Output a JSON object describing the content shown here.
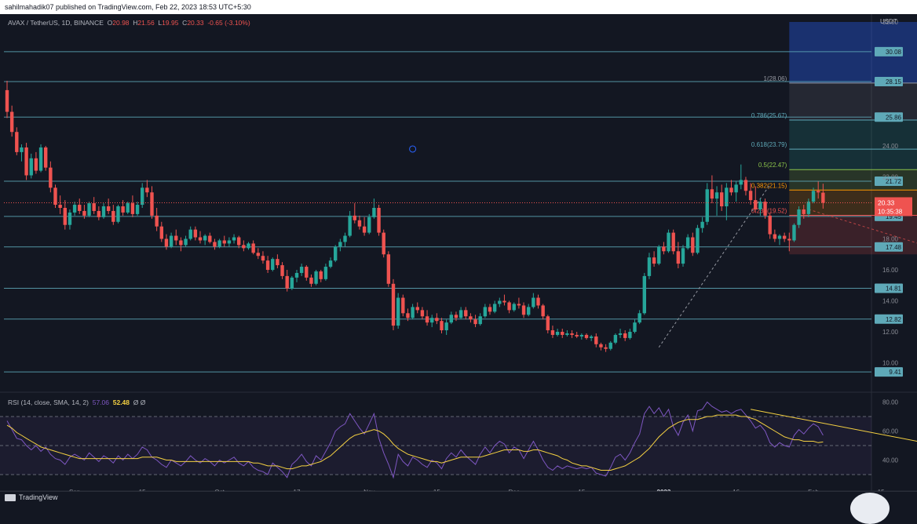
{
  "header": {
    "publish_line": "sahilmahadik07 published on TradingView.com, Feb 22, 2023 18:53 UTC+5:30"
  },
  "legend": {
    "symbol": "AVAX / TetherUS, 1D, BINANCE",
    "o_label": "O",
    "o_value": "20.98",
    "h_label": "H",
    "h_value": "21.56",
    "l_label": "L",
    "l_value": "19.95",
    "c_label": "C",
    "c_value": "20.33",
    "change": "-0.65 (-3.10%)"
  },
  "rsi_legend": {
    "label": "RSI (14, close, SMA, 14, 2)",
    "rsi_value": "57.06",
    "sma_value": "52.48",
    "extra1": "Ø",
    "extra2": "Ø"
  },
  "footer": {
    "brand": "TradingView"
  },
  "colors": {
    "background": "#131722",
    "up": "#26a69a",
    "down": "#ef5350",
    "level_line": "#5fa9b8",
    "rsi_line": "#7e57c2",
    "rsi_sma": "#f5d142",
    "price_label_bg": "#ef5350"
  },
  "chart_data": {
    "type": "candlestick",
    "symbol": "AVAX / TetherUS",
    "interval": "1D",
    "exchange": "BINANCE",
    "currency": "USDT",
    "price_axis_ticks": [
      "32.00",
      "24.00",
      "22.00",
      "18.00",
      "16.00",
      "14.00",
      "12.00",
      "10.00"
    ],
    "x_axis_ticks": [
      "Sep",
      "15",
      "Oct",
      "17",
      "Nov",
      "15",
      "Dec",
      "15",
      "2023",
      "16",
      "Feb",
      "15",
      "Mar",
      "15",
      "Apr"
    ],
    "x_tick_dates": [
      "2022-09-01",
      "2022-09-15",
      "2022-10-01",
      "2022-10-17",
      "2022-11-01",
      "2022-11-15",
      "2022-12-01",
      "2022-12-15",
      "2023-01-01",
      "2023-01-16",
      "2023-02-01",
      "2023-02-15",
      "2023-03-01",
      "2023-03-15",
      "2023-04-01"
    ],
    "start_date": "2022-08-18",
    "horizontal_levels": [
      "30.08",
      "28.15",
      "25.86",
      "21.72",
      "19.45",
      "17.48",
      "14.81",
      "12.82",
      "9.41"
    ],
    "last_price": "20.33",
    "countdown": "10:35:38",
    "fibonacci": {
      "date_from": "2023-01-27",
      "date_to": "2023-03-01",
      "levels": [
        {
          "ratio": "1",
          "price": "28.06",
          "label": "1(28.06)",
          "color": "#9598a1"
        },
        {
          "ratio": "0.786",
          "price": "25.67",
          "label": "0.786(25.67)",
          "color": "#5fa9b8"
        },
        {
          "ratio": "0.618",
          "price": "23.79",
          "label": "0.618(23.79)",
          "color": "#5fa9b8"
        },
        {
          "ratio": "0.5",
          "price": "22.47",
          "label": "0.5(22.47)",
          "color": "#8bc34a"
        },
        {
          "ratio": "0.382",
          "price": "21.15",
          "label": "0.382(21.15)",
          "color": "#ff9800"
        },
        {
          "ratio": "0.236",
          "price": "19.52",
          "label": "0.236(19.52)",
          "color": "#ef5350"
        }
      ]
    },
    "ohlc": [
      [
        27.6,
        28.2,
        25.8,
        26.2
      ],
      [
        26.2,
        26.6,
        24.6,
        24.9
      ],
      [
        24.9,
        25.2,
        23.4,
        23.6
      ],
      [
        23.6,
        24.1,
        23.0,
        23.9
      ],
      [
        23.9,
        24.2,
        21.8,
        22.1
      ],
      [
        22.1,
        23.5,
        21.9,
        23.2
      ],
      [
        23.2,
        23.6,
        22.2,
        22.4
      ],
      [
        22.4,
        24.1,
        22.3,
        23.9
      ],
      [
        23.9,
        24.0,
        22.4,
        22.6
      ],
      [
        22.6,
        23.0,
        21.0,
        21.3
      ],
      [
        21.3,
        21.5,
        20.0,
        20.2
      ],
      [
        20.2,
        20.8,
        19.6,
        20.0
      ],
      [
        20.0,
        20.5,
        18.6,
        18.9
      ],
      [
        18.9,
        19.9,
        18.6,
        19.7
      ],
      [
        19.7,
        20.4,
        19.5,
        20.2
      ],
      [
        20.2,
        20.6,
        19.6,
        19.8
      ],
      [
        19.8,
        20.2,
        19.3,
        19.5
      ],
      [
        19.5,
        20.4,
        19.4,
        20.3
      ],
      [
        20.3,
        20.7,
        19.6,
        19.8
      ],
      [
        19.8,
        20.1,
        19.2,
        19.4
      ],
      [
        19.4,
        20.3,
        19.3,
        20.1
      ],
      [
        20.1,
        20.6,
        19.6,
        19.8
      ],
      [
        19.8,
        20.2,
        18.9,
        19.1
      ],
      [
        19.1,
        20.2,
        19.0,
        20.1
      ],
      [
        20.1,
        20.5,
        19.5,
        19.7
      ],
      [
        19.7,
        20.4,
        19.6,
        20.3
      ],
      [
        20.3,
        20.8,
        19.4,
        19.6
      ],
      [
        19.6,
        20.4,
        19.5,
        20.2
      ],
      [
        20.2,
        21.6,
        20.0,
        21.3
      ],
      [
        21.3,
        21.8,
        20.7,
        21.0
      ],
      [
        21.0,
        21.4,
        19.3,
        19.5
      ],
      [
        19.5,
        20.0,
        18.5,
        18.8
      ],
      [
        18.8,
        19.1,
        17.8,
        18.0
      ],
      [
        18.0,
        18.3,
        17.3,
        17.5
      ],
      [
        17.5,
        18.4,
        17.4,
        18.2
      ],
      [
        18.2,
        18.6,
        17.6,
        17.9
      ],
      [
        17.9,
        18.1,
        17.2,
        17.6
      ],
      [
        17.6,
        18.2,
        17.5,
        18.0
      ],
      [
        18.0,
        18.8,
        17.9,
        18.6
      ],
      [
        18.6,
        18.8,
        17.9,
        18.1
      ],
      [
        18.1,
        18.5,
        17.7,
        17.9
      ],
      [
        17.9,
        18.3,
        17.6,
        18.2
      ],
      [
        18.2,
        18.4,
        17.7,
        17.8
      ],
      [
        17.8,
        18.0,
        17.3,
        17.5
      ],
      [
        17.5,
        18.0,
        17.4,
        17.9
      ],
      [
        17.9,
        18.2,
        17.5,
        17.7
      ],
      [
        17.7,
        18.1,
        17.5,
        17.9
      ],
      [
        17.9,
        18.3,
        17.7,
        18.1
      ],
      [
        18.1,
        18.2,
        17.4,
        17.6
      ],
      [
        17.6,
        17.9,
        17.2,
        17.4
      ],
      [
        17.4,
        17.8,
        17.3,
        17.7
      ],
      [
        17.7,
        17.9,
        17.0,
        17.1
      ],
      [
        17.1,
        17.4,
        16.7,
        16.9
      ],
      [
        16.9,
        17.2,
        16.4,
        16.6
      ],
      [
        16.6,
        16.9,
        15.8,
        16.0
      ],
      [
        16.0,
        16.8,
        15.9,
        16.7
      ],
      [
        16.7,
        17.0,
        16.1,
        16.3
      ],
      [
        16.3,
        16.5,
        15.4,
        15.6
      ],
      [
        15.6,
        16.0,
        14.6,
        14.8
      ],
      [
        14.8,
        15.6,
        14.7,
        15.5
      ],
      [
        15.5,
        16.0,
        15.2,
        15.8
      ],
      [
        15.8,
        16.4,
        15.6,
        16.2
      ],
      [
        16.2,
        16.3,
        15.3,
        15.5
      ],
      [
        15.5,
        15.7,
        14.9,
        15.1
      ],
      [
        15.1,
        16.0,
        15.0,
        15.9
      ],
      [
        15.9,
        16.0,
        15.2,
        15.4
      ],
      [
        15.4,
        16.4,
        15.3,
        16.2
      ],
      [
        16.2,
        16.8,
        16.1,
        16.6
      ],
      [
        16.6,
        17.6,
        16.5,
        17.5
      ],
      [
        17.5,
        18.0,
        17.2,
        17.8
      ],
      [
        17.8,
        18.4,
        17.5,
        18.2
      ],
      [
        18.2,
        19.8,
        18.1,
        19.5
      ],
      [
        19.5,
        20.3,
        19.0,
        19.2
      ],
      [
        19.2,
        19.5,
        18.6,
        18.8
      ],
      [
        18.8,
        19.4,
        18.2,
        18.4
      ],
      [
        18.4,
        19.6,
        18.3,
        19.4
      ],
      [
        19.4,
        20.6,
        19.3,
        20.0
      ],
      [
        20.0,
        20.2,
        18.2,
        18.4
      ],
      [
        18.4,
        18.6,
        16.8,
        17.0
      ],
      [
        17.0,
        17.2,
        14.9,
        15.1
      ],
      [
        15.1,
        15.4,
        12.1,
        12.4
      ],
      [
        12.4,
        14.5,
        12.2,
        14.2
      ],
      [
        14.2,
        14.4,
        13.0,
        13.2
      ],
      [
        13.2,
        13.5,
        12.7,
        12.9
      ],
      [
        12.9,
        13.8,
        12.8,
        13.6
      ],
      [
        13.6,
        13.9,
        13.2,
        13.4
      ],
      [
        13.4,
        13.6,
        12.8,
        13.0
      ],
      [
        13.0,
        13.4,
        12.4,
        12.6
      ],
      [
        12.6,
        13.1,
        12.3,
        12.9
      ],
      [
        12.9,
        13.2,
        12.5,
        12.7
      ],
      [
        12.7,
        12.9,
        11.9,
        12.1
      ],
      [
        12.1,
        12.8,
        11.8,
        12.6
      ],
      [
        12.6,
        13.3,
        12.5,
        13.1
      ],
      [
        13.1,
        13.3,
        12.7,
        12.9
      ],
      [
        12.9,
        13.6,
        12.8,
        13.4
      ],
      [
        13.4,
        13.6,
        12.8,
        13.0
      ],
      [
        13.0,
        13.2,
        12.6,
        12.8
      ],
      [
        12.8,
        13.1,
        12.3,
        12.5
      ],
      [
        12.5,
        13.2,
        12.4,
        13.0
      ],
      [
        13.0,
        13.8,
        12.9,
        13.6
      ],
      [
        13.6,
        13.8,
        13.1,
        13.3
      ],
      [
        13.3,
        14.0,
        13.2,
        13.8
      ],
      [
        13.8,
        14.2,
        13.6,
        14.0
      ],
      [
        14.0,
        14.4,
        13.7,
        13.9
      ],
      [
        13.9,
        14.0,
        13.2,
        13.4
      ],
      [
        13.4,
        13.9,
        13.3,
        13.8
      ],
      [
        13.8,
        14.2,
        13.5,
        13.7
      ],
      [
        13.7,
        13.9,
        12.9,
        13.1
      ],
      [
        13.1,
        13.8,
        13.0,
        13.6
      ],
      [
        13.6,
        14.5,
        13.5,
        14.2
      ],
      [
        14.2,
        14.4,
        13.5,
        13.7
      ],
      [
        13.7,
        13.8,
        12.8,
        13.0
      ],
      [
        13.0,
        13.1,
        11.9,
        12.1
      ],
      [
        12.1,
        12.4,
        11.6,
        11.8
      ],
      [
        11.8,
        12.2,
        11.7,
        12.0
      ],
      [
        12.0,
        12.2,
        11.6,
        11.8
      ],
      [
        11.8,
        12.1,
        11.7,
        11.9
      ],
      [
        11.9,
        12.1,
        11.6,
        11.8
      ],
      [
        11.8,
        12.0,
        11.6,
        11.7
      ],
      [
        11.7,
        11.9,
        11.5,
        11.8
      ],
      [
        11.8,
        11.9,
        11.5,
        11.6
      ],
      [
        11.6,
        11.8,
        11.4,
        11.7
      ],
      [
        11.7,
        11.9,
        11.0,
        11.2
      ],
      [
        11.2,
        11.3,
        10.8,
        11.0
      ],
      [
        11.0,
        11.2,
        10.7,
        10.9
      ],
      [
        10.9,
        11.4,
        10.8,
        11.3
      ],
      [
        11.3,
        11.9,
        11.2,
        11.8
      ],
      [
        11.8,
        12.2,
        11.6,
        11.9
      ],
      [
        11.9,
        12.1,
        11.4,
        11.6
      ],
      [
        11.6,
        12.2,
        11.5,
        12.0
      ],
      [
        12.0,
        12.8,
        11.9,
        12.6
      ],
      [
        12.6,
        13.4,
        12.5,
        13.2
      ],
      [
        13.2,
        15.8,
        13.1,
        15.6
      ],
      [
        15.6,
        17.1,
        15.4,
        16.8
      ],
      [
        16.8,
        17.2,
        16.2,
        16.4
      ],
      [
        16.4,
        17.6,
        16.3,
        17.5
      ],
      [
        17.5,
        17.8,
        17.0,
        17.2
      ],
      [
        17.2,
        18.6,
        17.1,
        18.4
      ],
      [
        18.4,
        18.6,
        17.0,
        17.2
      ],
      [
        17.2,
        17.8,
        16.1,
        16.4
      ],
      [
        16.4,
        17.6,
        16.2,
        17.4
      ],
      [
        17.4,
        18.3,
        17.3,
        18.1
      ],
      [
        18.1,
        18.4,
        16.9,
        17.1
      ],
      [
        17.1,
        18.9,
        17.0,
        18.7
      ],
      [
        18.7,
        19.4,
        18.4,
        19.1
      ],
      [
        19.1,
        21.6,
        18.9,
        21.2
      ],
      [
        21.2,
        22.1,
        20.3,
        20.6
      ],
      [
        20.6,
        21.4,
        19.5,
        21.0
      ],
      [
        21.0,
        21.5,
        19.8,
        20.1
      ],
      [
        20.1,
        21.6,
        19.2,
        21.3
      ],
      [
        21.3,
        21.8,
        20.8,
        21.0
      ],
      [
        21.0,
        21.7,
        20.4,
        21.5
      ],
      [
        21.5,
        22.8,
        21.2,
        21.8
      ],
      [
        21.8,
        22.0,
        20.8,
        21.1
      ],
      [
        21.1,
        21.6,
        20.2,
        20.5
      ],
      [
        20.5,
        21.4,
        19.7,
        19.9
      ],
      [
        19.9,
        20.6,
        19.5,
        20.4
      ],
      [
        20.4,
        20.6,
        19.3,
        19.5
      ],
      [
        19.5,
        19.7,
        18.0,
        18.3
      ],
      [
        18.3,
        18.6,
        17.8,
        18.0
      ],
      [
        18.0,
        18.3,
        17.6,
        18.2
      ],
      [
        18.2,
        18.4,
        17.8,
        18.0
      ],
      [
        18.0,
        18.4,
        17.2,
        17.9
      ],
      [
        17.9,
        19.0,
        17.8,
        18.9
      ],
      [
        18.9,
        20.1,
        18.7,
        19.9
      ],
      [
        19.9,
        20.2,
        19.3,
        19.6
      ],
      [
        19.6,
        20.6,
        19.4,
        20.4
      ],
      [
        20.4,
        21.3,
        20.3,
        21.1
      ],
      [
        21.1,
        21.7,
        20.6,
        21.0
      ],
      [
        20.98,
        21.56,
        19.95,
        20.33
      ]
    ],
    "rsi": {
      "label": "RSI (14, close, SMA, 14, 2)",
      "current": 57.06,
      "sma_current": 52.48,
      "axis_ticks": [
        "80.00",
        "60.00",
        "40.00"
      ],
      "bands": [
        70,
        50,
        30
      ],
      "values": [
        67,
        61,
        55,
        54,
        50,
        47,
        50,
        46,
        49,
        44,
        41,
        40,
        37,
        42,
        44,
        42,
        40,
        45,
        42,
        39,
        43,
        41,
        38,
        43,
        40,
        44,
        41,
        44,
        49,
        47,
        42,
        40,
        37,
        35,
        40,
        38,
        36,
        39,
        43,
        40,
        38,
        41,
        39,
        36,
        40,
        38,
        40,
        42,
        38,
        36,
        39,
        35,
        33,
        32,
        30,
        38,
        35,
        32,
        28,
        37,
        40,
        44,
        39,
        36,
        43,
        40,
        46,
        52,
        60,
        63,
        65,
        72,
        67,
        62,
        58,
        65,
        72,
        55,
        45,
        37,
        28,
        44,
        39,
        36,
        42,
        40,
        37,
        35,
        40,
        38,
        34,
        41,
        45,
        42,
        47,
        43,
        40,
        37,
        44,
        49,
        45,
        50,
        53,
        51,
        45,
        49,
        47,
        41,
        47,
        53,
        47,
        40,
        35,
        33,
        36,
        34,
        36,
        35,
        34,
        35,
        34,
        35,
        31,
        30,
        29,
        35,
        42,
        44,
        40,
        45,
        52,
        58,
        72,
        77,
        72,
        76,
        70,
        75,
        63,
        57,
        66,
        71,
        60,
        74,
        75,
        80,
        77,
        75,
        73,
        74,
        72,
        74,
        75,
        71,
        67,
        62,
        64,
        60,
        52,
        49,
        52,
        50,
        49,
        57,
        61,
        58,
        62,
        65,
        63,
        57.06
      ],
      "sma": [
        64,
        62,
        59,
        57,
        55,
        53,
        51,
        49,
        48,
        47,
        46,
        45,
        44,
        43,
        42,
        41,
        41,
        41,
        41,
        41,
        41,
        41,
        41,
        41,
        41,
        41,
        41,
        41,
        42,
        42,
        42,
        42,
        41,
        40,
        40,
        39,
        39,
        39,
        39,
        39,
        39,
        39,
        39,
        39,
        39,
        39,
        39,
        39,
        39,
        39,
        39,
        38,
        38,
        37,
        36,
        36,
        36,
        35,
        34,
        34,
        35,
        36,
        36,
        37,
        38,
        39,
        41,
        43,
        46,
        49,
        52,
        55,
        57,
        58,
        59,
        60,
        61,
        60,
        58,
        55,
        51,
        48,
        46,
        44,
        43,
        42,
        41,
        40,
        39,
        39,
        38,
        39,
        40,
        41,
        42,
        42,
        42,
        42,
        42,
        43,
        44,
        45,
        46,
        47,
        47,
        47,
        47,
        46,
        46,
        47,
        47,
        46,
        45,
        44,
        43,
        41,
        40,
        38,
        37,
        36,
        36,
        35,
        34,
        33,
        33,
        33,
        34,
        35,
        36,
        38,
        40,
        42,
        45,
        48,
        52,
        56,
        59,
        62,
        64,
        66,
        67,
        68,
        68,
        68,
        69,
        70,
        70,
        71,
        71,
        71,
        71,
        71,
        70,
        70,
        69,
        68,
        66,
        64,
        62,
        60,
        58,
        56,
        55,
        54,
        54,
        53,
        53,
        53,
        52,
        52.48
      ],
      "trendline": [
        [
          154,
          75
        ],
        [
          190,
          52
        ]
      ]
    },
    "price_trendline": [
      [
        135,
        11
      ],
      [
        158,
        21.5
      ]
    ],
    "projection_line": [
      [
        166,
        19.9
      ],
      [
        195,
        17.1
      ]
    ],
    "marker_point": [
      84,
      23.8
    ]
  }
}
